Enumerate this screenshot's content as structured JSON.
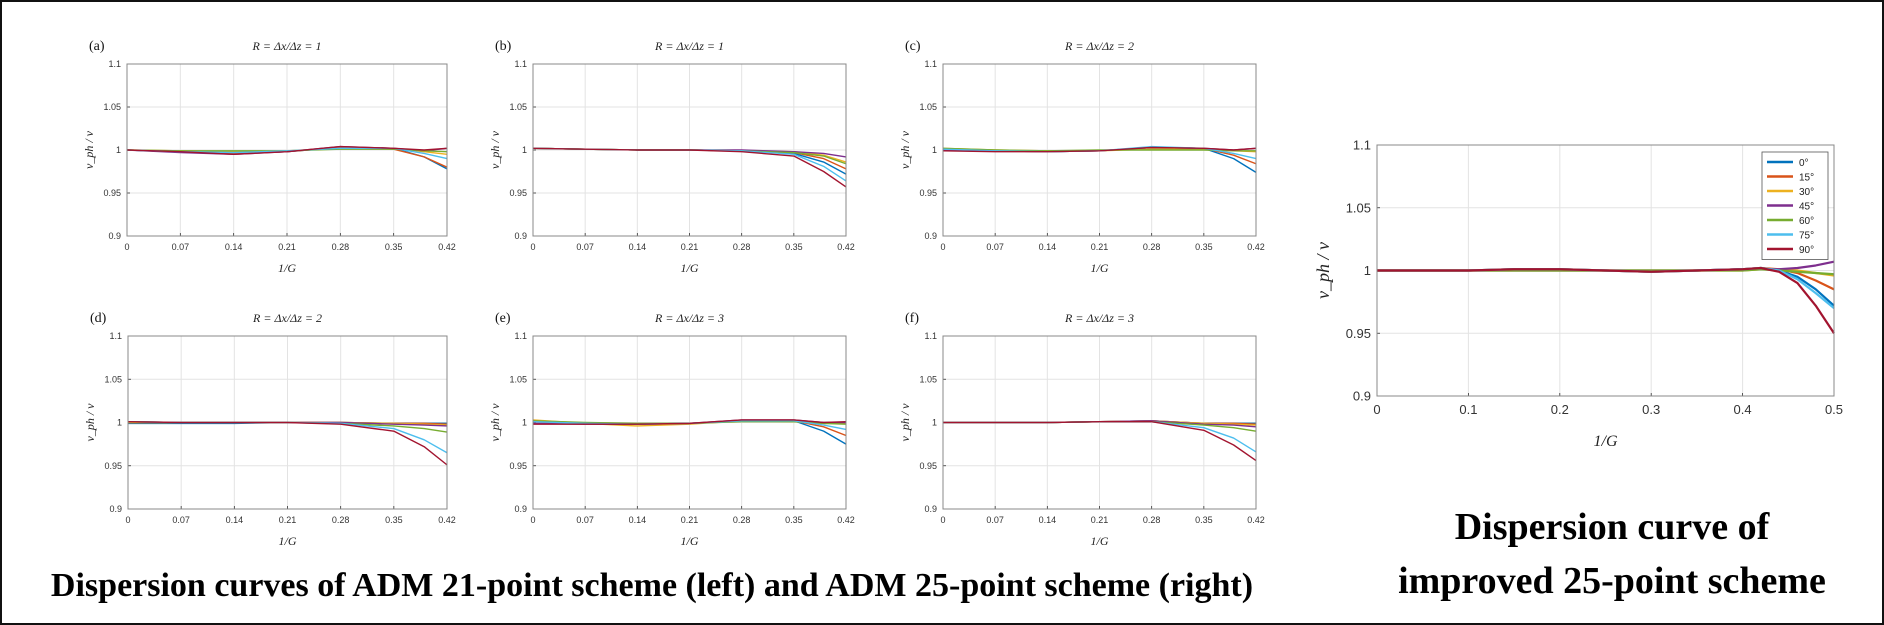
{
  "captions": {
    "left": "Dispersion curves of ADM 21-point scheme  (left) and ADM 25-point scheme (right)",
    "right_line1": "Dispersion curve of",
    "right_line2": "improved  25-point scheme"
  },
  "chart_data": [
    {
      "type": "line",
      "panel": "(a)",
      "title": "R = Δx/Δz = 1",
      "xlabel": "1/G",
      "ylabel": "v_ph / v",
      "xlim": [
        0,
        0.42
      ],
      "ylim": [
        0.9,
        1.1
      ],
      "xticks": [
        "0",
        "0.07",
        "0.14",
        "0.21",
        "0.28",
        "0.35",
        "0.42"
      ],
      "yticks": [
        "0.9",
        "0.95",
        "1",
        "1.05",
        "1.1"
      ],
      "x": [
        0,
        0.07,
        0.14,
        0.21,
        0.28,
        0.35,
        0.39,
        0.42
      ],
      "series": [
        {
          "values": [
            1.0,
            0.998,
            0.996,
            0.998,
            1.003,
            1.002,
            0.992,
            0.978
          ],
          "color": "#0072BD"
        },
        {
          "values": [
            1.0,
            0.998,
            0.996,
            0.998,
            1.003,
            1.001,
            0.992,
            0.98
          ],
          "color": "#D95319"
        },
        {
          "values": [
            1.0,
            0.999,
            0.998,
            0.999,
            1.002,
            1.002,
            0.998,
            0.995
          ],
          "color": "#EDB120"
        },
        {
          "values": [
            1.0,
            0.997,
            0.995,
            0.998,
            1.004,
            1.002,
            0.999,
            1.002
          ],
          "color": "#7E2F8E"
        },
        {
          "values": [
            1.0,
            0.999,
            0.999,
            0.999,
            1.001,
            1.001,
            0.999,
            0.998
          ],
          "color": "#77AC30"
        },
        {
          "values": [
            1.0,
            0.998,
            0.997,
            0.999,
            1.002,
            1.002,
            0.996,
            0.99
          ],
          "color": "#4DBEEE"
        },
        {
          "values": [
            1.0,
            0.998,
            0.995,
            0.998,
            1.004,
            1.002,
            1.0,
            1.002
          ],
          "color": "#A2142F"
        }
      ]
    },
    {
      "type": "line",
      "panel": "(b)",
      "title": "R = Δx/Δz = 1",
      "xlabel": "1/G",
      "ylabel": "v_ph / v",
      "xlim": [
        0,
        0.42
      ],
      "ylim": [
        0.9,
        1.1
      ],
      "xticks": [
        "0",
        "0.07",
        "0.14",
        "0.21",
        "0.28",
        "0.35",
        "0.42"
      ],
      "yticks": [
        "0.9",
        "0.95",
        "1",
        "1.05",
        "1.1"
      ],
      "x": [
        0,
        0.07,
        0.14,
        0.21,
        0.28,
        0.35,
        0.39,
        0.42
      ],
      "series": [
        {
          "values": [
            1.002,
            1.001,
            1.0,
            1.0,
            0.999,
            0.996,
            0.986,
            0.972
          ],
          "color": "#0072BD"
        },
        {
          "values": [
            1.002,
            1.001,
            1.0,
            1.0,
            0.999,
            0.997,
            0.99,
            0.978
          ],
          "color": "#D95319"
        },
        {
          "values": [
            1.002,
            1.001,
            1.0,
            1.0,
            0.999,
            0.998,
            0.994,
            0.986
          ],
          "color": "#EDB120"
        },
        {
          "values": [
            1.002,
            1.001,
            1.0,
            1.0,
            1.0,
            0.998,
            0.996,
            0.992
          ],
          "color": "#7E2F8E"
        },
        {
          "values": [
            1.002,
            1.001,
            1.0,
            1.0,
            0.999,
            0.997,
            0.993,
            0.984
          ],
          "color": "#77AC30"
        },
        {
          "values": [
            1.002,
            1.001,
            1.0,
            1.0,
            0.999,
            0.995,
            0.981,
            0.964
          ],
          "color": "#4DBEEE"
        },
        {
          "values": [
            1.002,
            1.001,
            1.0,
            1.0,
            0.998,
            0.993,
            0.975,
            0.957
          ],
          "color": "#A2142F"
        }
      ]
    },
    {
      "type": "line",
      "panel": "(c)",
      "title": "R = Δx/Δz = 2",
      "xlabel": "1/G",
      "ylabel": "v_ph / v",
      "xlim": [
        0,
        0.42
      ],
      "ylim": [
        0.9,
        1.1
      ],
      "xticks": [
        "0",
        "0.07",
        "0.14",
        "0.21",
        "0.28",
        "0.35",
        "0.42"
      ],
      "yticks": [
        "0.9",
        "0.95",
        "1",
        "1.05",
        "1.1"
      ],
      "x": [
        0,
        0.07,
        0.14,
        0.21,
        0.28,
        0.35,
        0.39,
        0.42
      ],
      "series": [
        {
          "values": [
            1.001,
            0.999,
            0.998,
            0.999,
            1.003,
            1.002,
            0.99,
            0.974
          ],
          "color": "#0072BD"
        },
        {
          "values": [
            1.001,
            0.999,
            0.998,
            0.999,
            1.003,
            1.002,
            0.994,
            0.984
          ],
          "color": "#D95319"
        },
        {
          "values": [
            1.002,
            1.0,
            0.999,
            0.999,
            1.001,
            1.001,
            0.999,
            0.998
          ],
          "color": "#EDB120"
        },
        {
          "values": [
            1.0,
            0.999,
            0.998,
            0.999,
            1.003,
            1.002,
            1.0,
            1.002
          ],
          "color": "#7E2F8E"
        },
        {
          "values": [
            1.002,
            1.0,
            0.999,
            1.0,
            1.0,
            1.0,
            0.999,
            0.999
          ],
          "color": "#77AC30"
        },
        {
          "values": [
            1.001,
            0.999,
            0.998,
            0.999,
            1.004,
            1.002,
            0.996,
            0.99
          ],
          "color": "#4DBEEE"
        },
        {
          "values": [
            0.999,
            0.998,
            0.998,
            0.999,
            1.003,
            1.002,
            1.0,
            1.002
          ],
          "color": "#A2142F"
        }
      ]
    },
    {
      "type": "line",
      "panel": "(d)",
      "title": "R = Δx/Δz = 2",
      "xlabel": "1/G",
      "ylabel": "v_ph / v",
      "xlim": [
        0,
        0.42
      ],
      "ylim": [
        0.9,
        1.1
      ],
      "xticks": [
        "0",
        "0.07",
        "0.14",
        "0.21",
        "0.28",
        "0.35",
        "0.42"
      ],
      "yticks": [
        "0.9",
        "0.95",
        "1",
        "1.05",
        "1.1"
      ],
      "x": [
        0,
        0.07,
        0.14,
        0.21,
        0.28,
        0.35,
        0.39,
        0.42
      ],
      "series": [
        {
          "values": [
            0.999,
            0.999,
            0.999,
            1.0,
            1.0,
            0.999,
            0.999,
            0.999
          ],
          "color": "#0072BD"
        },
        {
          "values": [
            1.0,
            1.0,
            1.0,
            1.0,
            1.0,
            0.999,
            0.999,
            0.998
          ],
          "color": "#D95319"
        },
        {
          "values": [
            1.0,
            1.0,
            1.0,
            1.0,
            1.0,
            0.999,
            0.998,
            0.997
          ],
          "color": "#EDB120"
        },
        {
          "values": [
            1.001,
            1.0,
            1.0,
            1.0,
            1.0,
            0.998,
            0.997,
            0.996
          ],
          "color": "#7E2F8E"
        },
        {
          "values": [
            1.001,
            1.0,
            1.0,
            1.0,
            0.999,
            0.996,
            0.993,
            0.989
          ],
          "color": "#77AC30"
        },
        {
          "values": [
            1.001,
            1.0,
            1.0,
            1.0,
            0.999,
            0.993,
            0.98,
            0.965
          ],
          "color": "#4DBEEE"
        },
        {
          "values": [
            1.001,
            1.0,
            1.0,
            1.0,
            0.998,
            0.99,
            0.972,
            0.951
          ],
          "color": "#A2142F"
        }
      ]
    },
    {
      "type": "line",
      "panel": "(e)",
      "title": "R = Δx/Δz = 3",
      "xlabel": "1/G",
      "ylabel": "v_ph / v",
      "xlim": [
        0,
        0.42
      ],
      "ylim": [
        0.9,
        1.1
      ],
      "xticks": [
        "0",
        "0.07",
        "0.14",
        "0.21",
        "0.28",
        "0.35",
        "0.42"
      ],
      "yticks": [
        "0.9",
        "0.95",
        "1",
        "1.05",
        "1.1"
      ],
      "x": [
        0,
        0.07,
        0.14,
        0.21,
        0.28,
        0.35,
        0.39,
        0.42
      ],
      "series": [
        {
          "values": [
            1.001,
            0.999,
            0.998,
            0.999,
            1.002,
            1.002,
            0.99,
            0.975
          ],
          "color": "#0072BD"
        },
        {
          "values": [
            1.001,
            0.999,
            0.998,
            0.999,
            1.002,
            1.002,
            0.995,
            0.985
          ],
          "color": "#D95319"
        },
        {
          "values": [
            1.003,
            0.999,
            0.996,
            0.998,
            1.002,
            1.001,
            0.999,
            0.999
          ],
          "color": "#EDB120"
        },
        {
          "values": [
            0.999,
            0.998,
            0.998,
            0.999,
            1.003,
            1.003,
            1.0,
            1.0
          ],
          "color": "#7E2F8E"
        },
        {
          "values": [
            1.002,
            1.0,
            0.999,
            0.999,
            1.001,
            1.001,
            0.999,
            0.998
          ],
          "color": "#77AC30"
        },
        {
          "values": [
            1.001,
            0.999,
            0.998,
            0.999,
            1.002,
            1.002,
            0.997,
            0.992
          ],
          "color": "#4DBEEE"
        },
        {
          "values": [
            0.998,
            0.998,
            0.998,
            0.999,
            1.003,
            1.003,
            1.0,
            1.001
          ],
          "color": "#A2142F"
        }
      ]
    },
    {
      "type": "line",
      "panel": "(f)",
      "title": "R = Δx/Δz = 3",
      "xlabel": "1/G",
      "ylabel": "v_ph / v",
      "xlim": [
        0,
        0.42
      ],
      "ylim": [
        0.9,
        1.1
      ],
      "xticks": [
        "0",
        "0.07",
        "0.14",
        "0.21",
        "0.28",
        "0.35",
        "0.42"
      ],
      "yticks": [
        "0.9",
        "0.95",
        "1",
        "1.05",
        "1.1"
      ],
      "x": [
        0,
        0.07,
        0.14,
        0.21,
        0.28,
        0.35,
        0.39,
        0.42
      ],
      "series": [
        {
          "values": [
            1.0,
            1.0,
            1.0,
            1.001,
            1.002,
            0.999,
            0.999,
            0.999
          ],
          "color": "#0072BD"
        },
        {
          "values": [
            1.0,
            1.0,
            1.0,
            1.001,
            1.002,
            0.999,
            0.999,
            0.998
          ],
          "color": "#D95319"
        },
        {
          "values": [
            1.0,
            1.0,
            1.0,
            1.001,
            1.002,
            0.999,
            0.998,
            0.997
          ],
          "color": "#EDB120"
        },
        {
          "values": [
            1.0,
            1.0,
            1.0,
            1.001,
            1.002,
            0.998,
            0.997,
            0.995
          ],
          "color": "#7E2F8E"
        },
        {
          "values": [
            1.0,
            1.0,
            1.0,
            1.001,
            1.001,
            0.997,
            0.994,
            0.99
          ],
          "color": "#77AC30"
        },
        {
          "values": [
            1.0,
            1.0,
            1.0,
            1.001,
            1.001,
            0.994,
            0.982,
            0.966
          ],
          "color": "#4DBEEE"
        },
        {
          "values": [
            1.0,
            1.0,
            1.0,
            1.001,
            1.001,
            0.991,
            0.974,
            0.956
          ],
          "color": "#A2142F"
        }
      ]
    },
    {
      "type": "line",
      "panel": "",
      "title": "",
      "xlabel": "1/G",
      "ylabel": "v_ph / v",
      "xlim": [
        0,
        0.5
      ],
      "ylim": [
        0.9,
        1.1
      ],
      "xticks": [
        "0",
        "0.1",
        "0.2",
        "0.3",
        "0.4",
        "0.5"
      ],
      "yticks": [
        "0.9",
        "0.95",
        "1",
        "1.05",
        "1.1"
      ],
      "legend": "top-right",
      "x": [
        0,
        0.05,
        0.1,
        0.15,
        0.2,
        0.25,
        0.3,
        0.35,
        0.4,
        0.42,
        0.44,
        0.46,
        0.48,
        0.5
      ],
      "series": [
        {
          "name": "0°",
          "color": "#0072BD",
          "values": [
            1.0,
            1.0,
            1.0,
            1.001,
            1.001,
            1.0,
            0.999,
            1.0,
            1.001,
            1.002,
            1.0,
            0.995,
            0.985,
            0.972
          ]
        },
        {
          "name": "15°",
          "color": "#D95319",
          "values": [
            1.0,
            1.0,
            1.0,
            1.001,
            1.001,
            1.0,
            0.999,
            1.0,
            1.001,
            1.002,
            1.001,
            0.998,
            0.992,
            0.985
          ]
        },
        {
          "name": "30°",
          "color": "#EDB120",
          "values": [
            1.0,
            1.0,
            1.0,
            1.0,
            1.0,
            1.0,
            1.0,
            1.0,
            1.0,
            1.001,
            1.001,
            1.0,
            0.998,
            0.996
          ]
        },
        {
          "name": "45°",
          "color": "#7E2F8E",
          "values": [
            1.0,
            1.0,
            1.0,
            1.0,
            1.0,
            1.0,
            1.0,
            1.0,
            1.001,
            1.001,
            1.001,
            1.002,
            1.004,
            1.007
          ]
        },
        {
          "name": "60°",
          "color": "#77AC30",
          "values": [
            1.0,
            1.0,
            1.0,
            1.0,
            1.0,
            1.0,
            1.0,
            1.0,
            1.0,
            1.001,
            1.0,
            0.999,
            0.998,
            0.997
          ]
        },
        {
          "name": "75°",
          "color": "#4DBEEE",
          "values": [
            1.0,
            1.0,
            1.0,
            1.001,
            1.001,
            1.0,
            0.999,
            1.0,
            1.001,
            1.002,
            1.0,
            0.993,
            0.982,
            0.97
          ]
        },
        {
          "name": "90°",
          "color": "#A2142F",
          "values": [
            1.0,
            1.0,
            1.0,
            1.001,
            1.001,
            1.0,
            0.999,
            1.0,
            1.001,
            1.002,
            0.999,
            0.99,
            0.972,
            0.95
          ]
        }
      ]
    }
  ]
}
